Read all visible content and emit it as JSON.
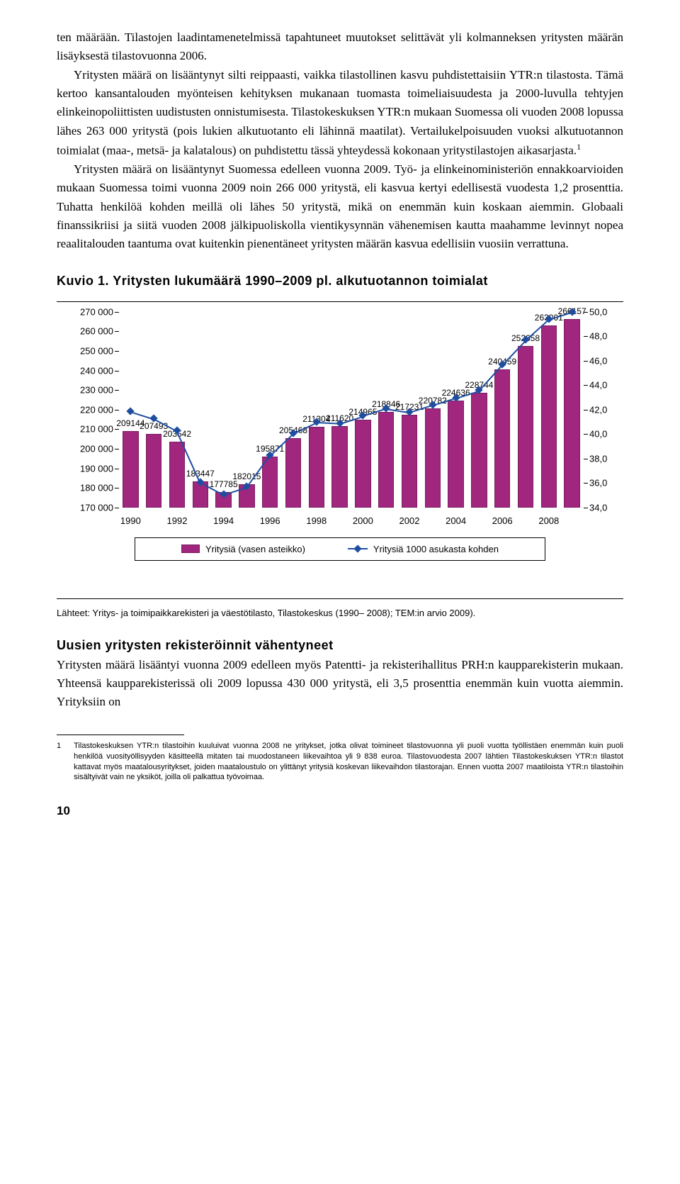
{
  "paragraphs": {
    "p1": "ten määrään. Tilastojen laadintamenetelmissä tapahtuneet muutokset selittävät yli kolmanneksen yritysten määrän lisäyksestä tilastovuonna 2006.",
    "p2a": "Yritysten määrä on lisääntynyt silti reippaasti, vaikka tilastollinen kasvu puhdistettaisiin YTR:n tilastosta. Tämä kertoo kansantalouden myönteisen kehityksen mukanaan tuomasta toimeliaisuudesta ja 2000-luvulla tehtyjen elinkeinopoliittisten uudistusten onnistumisesta. Tilastokeskuksen YTR:n mukaan Suomessa oli vuoden 2008 lopussa lähes 263 000 yritystä (pois lukien alkutuotanto eli lähinnä maatilat). Vertailukelpoisuuden vuoksi alkutuotannon toimialat (maa-, metsä- ja kalatalous) on puhdistettu tässä yhteydessä kokonaan yritystilastojen aikasarjasta.",
    "p2b": "1",
    "p3": "Yritysten määrä on lisääntynyt Suomessa edelleen vuonna 2009. Työ- ja elinkeinoministeriön ennakkoarvioiden mukaan Suomessa toimi vuonna 2009 noin 266 000 yritystä, eli kasvua kertyi edellisestä vuodesta 1,2 prosenttia. Tuhatta henkilöä kohden meillä oli lähes 50 yritystä, mikä on enemmän kuin koskaan aiemmin. Globaali finanssikriisi ja siitä vuoden 2008 jälkipuoliskolla vientikysynnän vähenemisen kautta maahamme levinnyt nopea reaalitalouden taantuma ovat kuitenkin pienentäneet yritysten määrän kasvua edellisiin vuosiin verrattuna."
  },
  "figure": {
    "title": "Kuvio 1. Yritysten lukumäärä 1990–2009 pl. alkutuotannon toimialat",
    "type": "bar+line",
    "years": [
      1990,
      1991,
      1992,
      1993,
      1994,
      1995,
      1996,
      1997,
      1998,
      1999,
      2000,
      2001,
      2002,
      2003,
      2004,
      2005,
      2006,
      2007,
      2008,
      2009
    ],
    "bar_values": [
      209144,
      207493,
      203542,
      183447,
      177785,
      182015,
      195871,
      205468,
      211304,
      211620,
      214965,
      218846,
      217231,
      220782,
      224636,
      228744,
      240459,
      252658,
      263001,
      266157
    ],
    "line_values": [
      41.9,
      41.3,
      40.3,
      36.1,
      35.1,
      35.7,
      38.3,
      40.1,
      41.0,
      40.9,
      41.5,
      42.1,
      41.8,
      42.4,
      43.0,
      43.6,
      45.7,
      47.7,
      49.4,
      50.0
    ],
    "x_tick_years": [
      1990,
      1992,
      1994,
      1996,
      1998,
      2000,
      2002,
      2004,
      2006,
      2008
    ],
    "y_left": {
      "min": 170000,
      "max": 270000,
      "step": 10000
    },
    "y_right": {
      "min": 34.0,
      "max": 50.0,
      "step": 2.0
    },
    "bar_color": "#a0267e",
    "bar_border": "#7a1d60",
    "line_color": "#1f4ea1",
    "legend": {
      "bar": "Yritysiä (vasen asteikko)",
      "line": "Yritysiä 1000 asukasta kohden"
    },
    "sources": "Lähteet: Yritys- ja toimipaikkarekisteri ja väestötilasto, Tilastokeskus (1990– 2008); TEM:in arvio 2009)."
  },
  "section2": {
    "heading": "Uusien yritysten rekisteröinnit vähentyneet",
    "p1": "Yritysten määrä lisääntyi vuonna 2009 edelleen myös Patentti- ja rekisterihallitus PRH:n kaupparekisterin mukaan. Yhteensä kaupparekisterissä oli 2009 lopussa 430 000 yritystä, eli 3,5 prosenttia enemmän kuin vuotta aiemmin. Yrityksiin on"
  },
  "footnote": {
    "num": "1",
    "text": "Tilastokeskuksen YTR:n tilastoihin kuuluivat vuonna 2008 ne yritykset, jotka olivat toimineet tilastovuonna yli puoli vuotta työllistäen enemmän kuin puoli henkilöä vuosityöllisyyden käsitteellä mitaten tai muodostaneen liikevaihtoa yli 9 838 euroa. Tilastovuodesta 2007 lähtien Tilastokeskuksen YTR:n tilastot kattavat myös maatalousyritykset, joiden maataloustulo on ylittänyt yritys­iä koskevan liikevaihdon tilastorajan. Ennen vuotta 2007 maatiloista YTR:n tilastoihin sisältyivät vain ne yksiköt, joilla oli palkattua työvoimaa."
  },
  "page_number": "10"
}
